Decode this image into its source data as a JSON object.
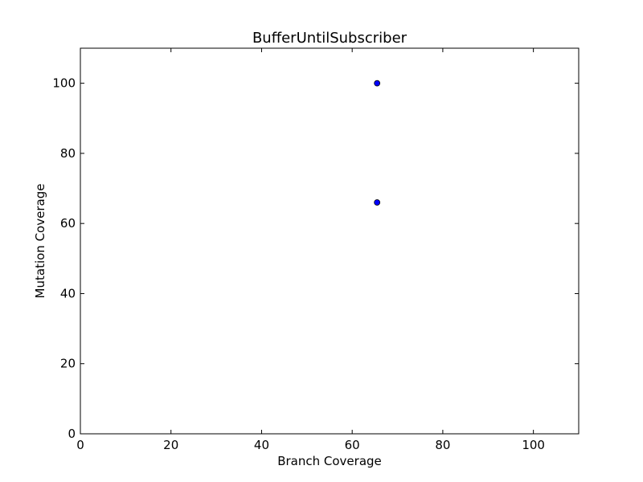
{
  "chart_data": {
    "type": "scatter",
    "title": "BufferUntilSubscriber",
    "xlabel": "Branch Coverage",
    "ylabel": "Mutation Coverage",
    "xlim": [
      0,
      110
    ],
    "ylim": [
      0,
      110
    ],
    "xticks": [
      0,
      20,
      40,
      60,
      80,
      100
    ],
    "yticks": [
      0,
      20,
      40,
      60,
      80,
      100
    ],
    "grid": false,
    "series": [
      {
        "points": [
          {
            "x": 65.5,
            "y": 100
          },
          {
            "x": 65.5,
            "y": 66
          }
        ],
        "color": "#0000ff"
      }
    ]
  }
}
